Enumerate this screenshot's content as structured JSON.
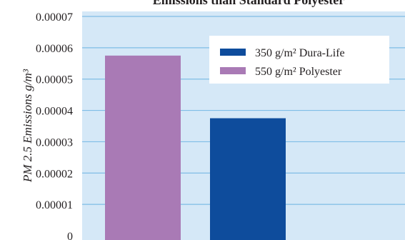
{
  "chart_data": {
    "type": "bar",
    "title": "Emissions than Standard Polyester",
    "ylabel": "PM 2.5 Emissions g/m³",
    "xlabel": "",
    "ylim": [
      0,
      7e-05
    ],
    "y_ticks": [
      "0",
      "0.00001",
      "0.00002",
      "0.00003",
      "0.00004",
      "0.00005",
      "0.00006",
      "0.00007"
    ],
    "grid": true,
    "legend_position": "top-right",
    "series": [
      {
        "name": "550 g/m² Polyester",
        "legend_label": "550 g/m² Polyester",
        "value": 5.75e-05,
        "color": "#a97ab5"
      },
      {
        "name": "350 g/m² Dura-Life",
        "legend_label": "350 g/m² Dura-Life",
        "value": 3.75e-05,
        "color": "#0e4c9c"
      }
    ],
    "legend_order": [
      1,
      0
    ],
    "plot_background": "#d5e8f7",
    "grid_color": "#7fbde6"
  }
}
